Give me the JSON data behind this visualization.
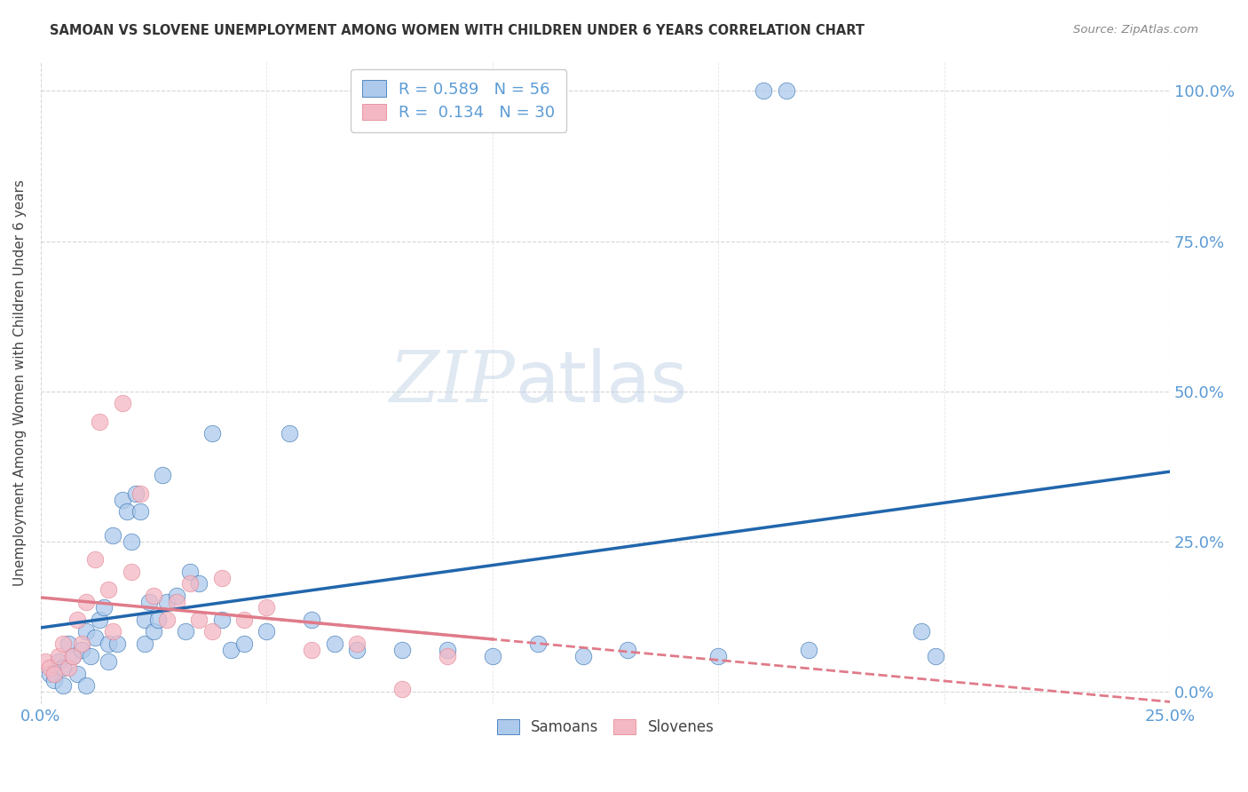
{
  "title": "SAMOAN VS SLOVENE UNEMPLOYMENT AMONG WOMEN WITH CHILDREN UNDER 6 YEARS CORRELATION CHART",
  "source": "Source: ZipAtlas.com",
  "ylabel": "Unemployment Among Women with Children Under 6 years",
  "samoans_R": 0.589,
  "samoans_N": 56,
  "slovenes_R": 0.134,
  "slovenes_N": 30,
  "samoan_color": "#adc9eb",
  "slovene_color": "#f4b8c4",
  "samoan_line_color": "#2166ac",
  "slovene_line_color": "#e07b8a",
  "background_color": "#ffffff",
  "grid_color": "#cccccc",
  "watermark_zip": "ZIP",
  "watermark_atlas": "atlas",
  "samoans_x": [
    0.2,
    0.3,
    0.4,
    0.5,
    0.5,
    0.6,
    0.7,
    0.8,
    0.9,
    1.0,
    1.0,
    1.1,
    1.2,
    1.3,
    1.4,
    1.5,
    1.5,
    1.6,
    1.7,
    1.8,
    1.9,
    2.0,
    2.1,
    2.2,
    2.3,
    2.3,
    2.4,
    2.5,
    2.6,
    2.7,
    2.8,
    3.0,
    3.2,
    3.3,
    3.5,
    3.8,
    4.0,
    4.2,
    4.5,
    5.0,
    5.5,
    6.0,
    6.5,
    7.0,
    8.0,
    9.0,
    10.0,
    11.0,
    12.0,
    13.0,
    15.0,
    17.0,
    16.0,
    16.5,
    19.5,
    19.8
  ],
  "samoans_y": [
    3.0,
    2.0,
    5.0,
    1.0,
    4.0,
    8.0,
    6.0,
    3.0,
    7.0,
    1.0,
    10.0,
    6.0,
    9.0,
    12.0,
    14.0,
    5.0,
    8.0,
    26.0,
    8.0,
    32.0,
    30.0,
    25.0,
    33.0,
    30.0,
    12.0,
    8.0,
    15.0,
    10.0,
    12.0,
    36.0,
    15.0,
    16.0,
    10.0,
    20.0,
    18.0,
    43.0,
    12.0,
    7.0,
    8.0,
    10.0,
    43.0,
    12.0,
    8.0,
    7.0,
    7.0,
    7.0,
    6.0,
    8.0,
    6.0,
    7.0,
    6.0,
    7.0,
    100.0,
    100.0,
    10.0,
    6.0
  ],
  "slovenes_x": [
    0.1,
    0.2,
    0.3,
    0.4,
    0.5,
    0.6,
    0.7,
    0.8,
    0.9,
    1.0,
    1.2,
    1.3,
    1.5,
    1.6,
    1.8,
    2.0,
    2.2,
    2.5,
    2.8,
    3.0,
    3.3,
    3.5,
    3.8,
    4.0,
    4.5,
    5.0,
    6.0,
    7.0,
    8.0,
    9.0
  ],
  "slovenes_y": [
    5.0,
    4.0,
    3.0,
    6.0,
    8.0,
    4.0,
    6.0,
    12.0,
    8.0,
    15.0,
    22.0,
    45.0,
    17.0,
    10.0,
    48.0,
    20.0,
    33.0,
    16.0,
    12.0,
    15.0,
    18.0,
    12.0,
    10.0,
    19.0,
    12.0,
    14.0,
    7.0,
    8.0,
    0.5,
    6.0
  ],
  "xlim": [
    0.0,
    25.0
  ],
  "ylim": [
    -2.0,
    105.0
  ],
  "xticks": [
    0.0,
    25.0
  ],
  "yticks": [
    0.0,
    25.0,
    50.0,
    75.0,
    100.0
  ]
}
